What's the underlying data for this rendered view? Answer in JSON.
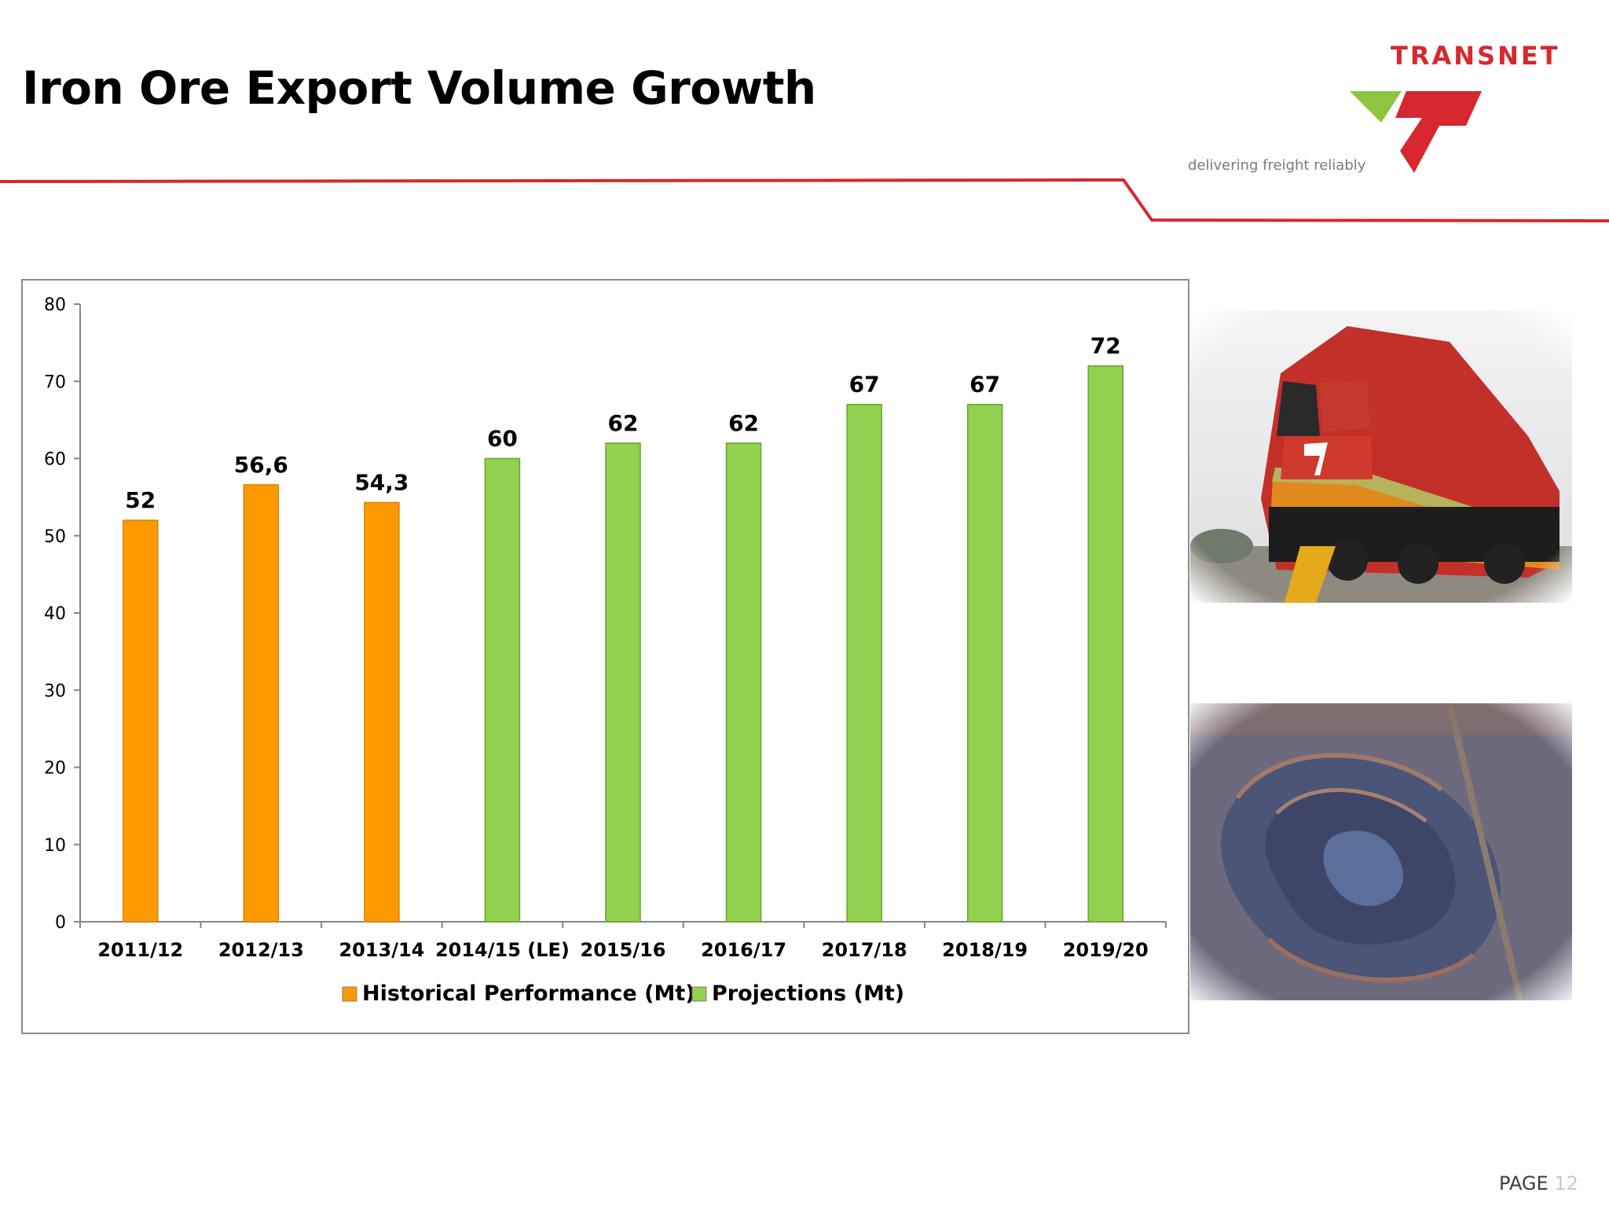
{
  "slide": {
    "title": "Iron Ore Export Volume Growth",
    "page_label": "PAGE",
    "page_number": "12"
  },
  "brand": {
    "name": "TRANSNET",
    "tagline": "delivering freight reliably",
    "red": "#d7282f",
    "green": "#8cc63f"
  },
  "images": {
    "locomotive": "red-orange-freight-locomotive-photo",
    "mine": "aerial-open-pit-iron-ore-mine-photo"
  },
  "chart_data": {
    "type": "bar",
    "categories": [
      "2011/12",
      "2012/13",
      "2013/14",
      "2014/15 (LE)",
      "2015/16",
      "2016/17",
      "2017/18",
      "2018/19",
      "2019/20"
    ],
    "series": [
      {
        "name": "Historical Performance (Mt)",
        "color": "#ff9900",
        "values": [
          52,
          56.6,
          54.3,
          null,
          null,
          null,
          null,
          null,
          null
        ],
        "labels": [
          "52",
          "56,6",
          "54,3",
          "",
          "",
          "",
          "",
          "",
          ""
        ]
      },
      {
        "name": "Projections (Mt)",
        "color": "#92d050",
        "values": [
          null,
          null,
          null,
          60,
          62,
          62,
          67,
          67,
          72
        ],
        "labels": [
          "",
          "",
          "",
          "60",
          "62",
          "62",
          "67",
          "67",
          "72"
        ]
      }
    ],
    "yticks": [
      "0",
      "10",
      "20",
      "30",
      "40",
      "50",
      "60",
      "70",
      "80"
    ],
    "ylim": [
      0,
      80
    ],
    "grid": false,
    "legend_position": "bottom"
  }
}
